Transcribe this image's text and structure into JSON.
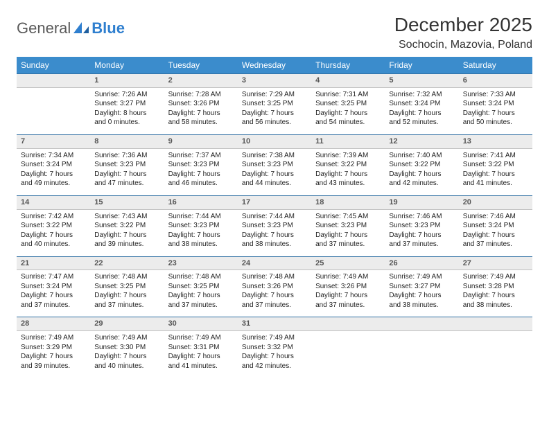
{
  "logo": {
    "text1": "General",
    "text2": "Blue"
  },
  "title": "December 2025",
  "location": "Sochocin, Mazovia, Poland",
  "colors": {
    "header_bg": "#3b8ccc",
    "header_text": "#ffffff",
    "daynum_bg": "#ececec",
    "daynum_border_top": "#2f6fa3",
    "text": "#333333",
    "logo_gray": "#5a5a5a",
    "logo_blue": "#2f7fcf",
    "page_bg": "#ffffff"
  },
  "typography": {
    "title_fontsize": 28,
    "location_fontsize": 16,
    "header_fontsize": 12,
    "daynum_fontsize": 11,
    "cell_fontsize": 10
  },
  "dayNames": [
    "Sunday",
    "Monday",
    "Tuesday",
    "Wednesday",
    "Thursday",
    "Friday",
    "Saturday"
  ],
  "weeks": [
    {
      "nums": [
        "",
        "1",
        "2",
        "3",
        "4",
        "5",
        "6"
      ],
      "cells": [
        {
          "empty": true
        },
        {
          "sunrise": "Sunrise: 7:26 AM",
          "sunset": "Sunset: 3:27 PM",
          "daylight": "Daylight: 8 hours and 0 minutes."
        },
        {
          "sunrise": "Sunrise: 7:28 AM",
          "sunset": "Sunset: 3:26 PM",
          "daylight": "Daylight: 7 hours and 58 minutes."
        },
        {
          "sunrise": "Sunrise: 7:29 AM",
          "sunset": "Sunset: 3:25 PM",
          "daylight": "Daylight: 7 hours and 56 minutes."
        },
        {
          "sunrise": "Sunrise: 7:31 AM",
          "sunset": "Sunset: 3:25 PM",
          "daylight": "Daylight: 7 hours and 54 minutes."
        },
        {
          "sunrise": "Sunrise: 7:32 AM",
          "sunset": "Sunset: 3:24 PM",
          "daylight": "Daylight: 7 hours and 52 minutes."
        },
        {
          "sunrise": "Sunrise: 7:33 AM",
          "sunset": "Sunset: 3:24 PM",
          "daylight": "Daylight: 7 hours and 50 minutes."
        }
      ]
    },
    {
      "nums": [
        "7",
        "8",
        "9",
        "10",
        "11",
        "12",
        "13"
      ],
      "cells": [
        {
          "sunrise": "Sunrise: 7:34 AM",
          "sunset": "Sunset: 3:24 PM",
          "daylight": "Daylight: 7 hours and 49 minutes."
        },
        {
          "sunrise": "Sunrise: 7:36 AM",
          "sunset": "Sunset: 3:23 PM",
          "daylight": "Daylight: 7 hours and 47 minutes."
        },
        {
          "sunrise": "Sunrise: 7:37 AM",
          "sunset": "Sunset: 3:23 PM",
          "daylight": "Daylight: 7 hours and 46 minutes."
        },
        {
          "sunrise": "Sunrise: 7:38 AM",
          "sunset": "Sunset: 3:23 PM",
          "daylight": "Daylight: 7 hours and 44 minutes."
        },
        {
          "sunrise": "Sunrise: 7:39 AM",
          "sunset": "Sunset: 3:22 PM",
          "daylight": "Daylight: 7 hours and 43 minutes."
        },
        {
          "sunrise": "Sunrise: 7:40 AM",
          "sunset": "Sunset: 3:22 PM",
          "daylight": "Daylight: 7 hours and 42 minutes."
        },
        {
          "sunrise": "Sunrise: 7:41 AM",
          "sunset": "Sunset: 3:22 PM",
          "daylight": "Daylight: 7 hours and 41 minutes."
        }
      ]
    },
    {
      "nums": [
        "14",
        "15",
        "16",
        "17",
        "18",
        "19",
        "20"
      ],
      "cells": [
        {
          "sunrise": "Sunrise: 7:42 AM",
          "sunset": "Sunset: 3:22 PM",
          "daylight": "Daylight: 7 hours and 40 minutes."
        },
        {
          "sunrise": "Sunrise: 7:43 AM",
          "sunset": "Sunset: 3:22 PM",
          "daylight": "Daylight: 7 hours and 39 minutes."
        },
        {
          "sunrise": "Sunrise: 7:44 AM",
          "sunset": "Sunset: 3:23 PM",
          "daylight": "Daylight: 7 hours and 38 minutes."
        },
        {
          "sunrise": "Sunrise: 7:44 AM",
          "sunset": "Sunset: 3:23 PM",
          "daylight": "Daylight: 7 hours and 38 minutes."
        },
        {
          "sunrise": "Sunrise: 7:45 AM",
          "sunset": "Sunset: 3:23 PM",
          "daylight": "Daylight: 7 hours and 37 minutes."
        },
        {
          "sunrise": "Sunrise: 7:46 AM",
          "sunset": "Sunset: 3:23 PM",
          "daylight": "Daylight: 7 hours and 37 minutes."
        },
        {
          "sunrise": "Sunrise: 7:46 AM",
          "sunset": "Sunset: 3:24 PM",
          "daylight": "Daylight: 7 hours and 37 minutes."
        }
      ]
    },
    {
      "nums": [
        "21",
        "22",
        "23",
        "24",
        "25",
        "26",
        "27"
      ],
      "cells": [
        {
          "sunrise": "Sunrise: 7:47 AM",
          "sunset": "Sunset: 3:24 PM",
          "daylight": "Daylight: 7 hours and 37 minutes."
        },
        {
          "sunrise": "Sunrise: 7:48 AM",
          "sunset": "Sunset: 3:25 PM",
          "daylight": "Daylight: 7 hours and 37 minutes."
        },
        {
          "sunrise": "Sunrise: 7:48 AM",
          "sunset": "Sunset: 3:25 PM",
          "daylight": "Daylight: 7 hours and 37 minutes."
        },
        {
          "sunrise": "Sunrise: 7:48 AM",
          "sunset": "Sunset: 3:26 PM",
          "daylight": "Daylight: 7 hours and 37 minutes."
        },
        {
          "sunrise": "Sunrise: 7:49 AM",
          "sunset": "Sunset: 3:26 PM",
          "daylight": "Daylight: 7 hours and 37 minutes."
        },
        {
          "sunrise": "Sunrise: 7:49 AM",
          "sunset": "Sunset: 3:27 PM",
          "daylight": "Daylight: 7 hours and 38 minutes."
        },
        {
          "sunrise": "Sunrise: 7:49 AM",
          "sunset": "Sunset: 3:28 PM",
          "daylight": "Daylight: 7 hours and 38 minutes."
        }
      ]
    },
    {
      "nums": [
        "28",
        "29",
        "30",
        "31",
        "",
        "",
        ""
      ],
      "cells": [
        {
          "sunrise": "Sunrise: 7:49 AM",
          "sunset": "Sunset: 3:29 PM",
          "daylight": "Daylight: 7 hours and 39 minutes."
        },
        {
          "sunrise": "Sunrise: 7:49 AM",
          "sunset": "Sunset: 3:30 PM",
          "daylight": "Daylight: 7 hours and 40 minutes."
        },
        {
          "sunrise": "Sunrise: 7:49 AM",
          "sunset": "Sunset: 3:31 PM",
          "daylight": "Daylight: 7 hours and 41 minutes."
        },
        {
          "sunrise": "Sunrise: 7:49 AM",
          "sunset": "Sunset: 3:32 PM",
          "daylight": "Daylight: 7 hours and 42 minutes."
        },
        {
          "empty": true
        },
        {
          "empty": true
        },
        {
          "empty": true
        }
      ]
    }
  ]
}
